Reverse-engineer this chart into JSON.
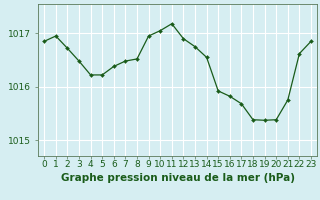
{
  "x": [
    0,
    1,
    2,
    3,
    4,
    5,
    6,
    7,
    8,
    9,
    10,
    11,
    12,
    13,
    14,
    15,
    16,
    17,
    18,
    19,
    20,
    21,
    22,
    23
  ],
  "y": [
    1016.85,
    1016.95,
    1016.72,
    1016.48,
    1016.22,
    1016.22,
    1016.38,
    1016.48,
    1016.52,
    1016.95,
    1017.05,
    1017.18,
    1016.9,
    1016.75,
    1016.55,
    1015.92,
    1015.82,
    1015.68,
    1015.38,
    1015.37,
    1015.38,
    1015.75,
    1016.62,
    1016.85
  ],
  "ylabel_ticks": [
    1015,
    1016,
    1017
  ],
  "xlabel_label": "Graphe pression niveau de la mer (hPa)",
  "ylim": [
    1014.7,
    1017.55
  ],
  "xlim": [
    -0.5,
    23.5
  ],
  "bg_color": "#d6eef2",
  "grid_color": "#ffffff",
  "line_color": "#1a5c1a",
  "marker_color": "#1a5c1a",
  "tick_label_color": "#1a5c1a",
  "xlabel_color": "#1a5c1a",
  "axis_color": "#5a7a5a",
  "tick_fontsize": 6.5,
  "xlabel_fontsize": 7.5
}
